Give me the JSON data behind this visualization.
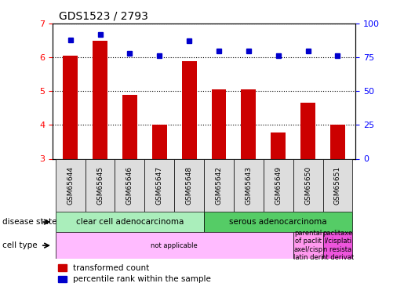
{
  "title": "GDS1523 / 2793",
  "samples": [
    "GSM65644",
    "GSM65645",
    "GSM65646",
    "GSM65647",
    "GSM65648",
    "GSM65642",
    "GSM65643",
    "GSM65649",
    "GSM65650",
    "GSM65651"
  ],
  "transformed_counts": [
    6.05,
    6.5,
    4.88,
    4.0,
    5.88,
    5.05,
    5.05,
    3.78,
    4.65,
    4.02
  ],
  "percentile_ranks": [
    88,
    92,
    78,
    76,
    87,
    80,
    80,
    76,
    80,
    76
  ],
  "bar_bottom": 3.0,
  "ylim": [
    3.0,
    7.0
  ],
  "yticks_left": [
    3,
    4,
    5,
    6,
    7
  ],
  "yticks_right": [
    0,
    25,
    50,
    75,
    100
  ],
  "bar_color": "#cc0000",
  "dot_color": "#0000cc",
  "sample_box_color": "#dddddd",
  "disease_groups": [
    {
      "label": "clear cell adenocarcinoma",
      "start": 0,
      "end": 4,
      "color": "#aaeebb"
    },
    {
      "label": "serous adenocarcinoma",
      "start": 5,
      "end": 9,
      "color": "#55cc66"
    }
  ],
  "cell_groups": [
    {
      "label": "not applicable",
      "start": 0,
      "end": 7,
      "color": "#ffbbff"
    },
    {
      "label": "parental\nof paclit\naxel/cisp\nlatin deri",
      "start": 8,
      "end": 8,
      "color": "#ff99ee"
    },
    {
      "label": "paclitaxe\nl/cisplati\nn resista\nnt derivat",
      "start": 9,
      "end": 9,
      "color": "#ee55dd"
    }
  ],
  "legend_labels": [
    "transformed count",
    "percentile rank within the sample"
  ],
  "legend_colors": [
    "#cc0000",
    "#0000cc"
  ]
}
